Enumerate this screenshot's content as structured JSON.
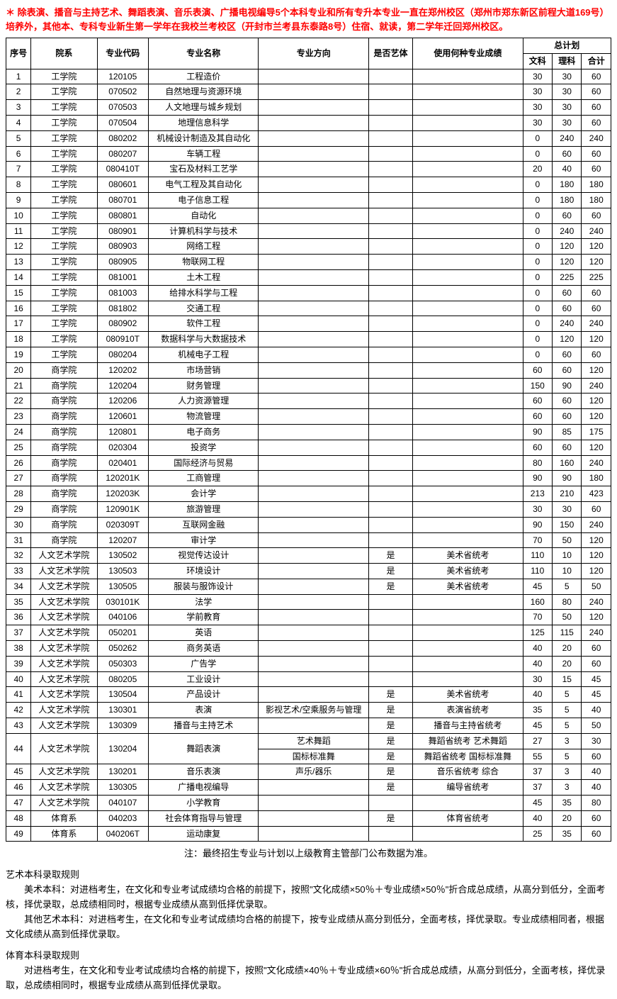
{
  "notice": "＊ 除表演、播音与主持艺术、舞蹈表演、音乐表演、广播电视编导5个本科专业和所有专升本专业一直在郑州校区（郑州市郑东新区前程大道169号）培养外，其他本、专科专业新生第一学年在我校兰考校区（开封市兰考县东泰路8号）住宿、就读，第二学年迁回郑州校区。",
  "headers": {
    "seq": "序号",
    "dept": "院系",
    "code": "专业代码",
    "name": "专业名称",
    "direction": "专业方向",
    "art": "是否艺体",
    "score": "使用何种专业成绩",
    "plan": "总计划",
    "wen": "文科",
    "li": "理科",
    "total": "合计"
  },
  "rows": [
    {
      "seq": "1",
      "dept": "工学院",
      "code": "120105",
      "name": "工程造价",
      "dir": "",
      "art": "",
      "score": "",
      "wen": "30",
      "li": "30",
      "total": "60"
    },
    {
      "seq": "2",
      "dept": "工学院",
      "code": "070502",
      "name": "自然地理与资源环境",
      "dir": "",
      "art": "",
      "score": "",
      "wen": "30",
      "li": "30",
      "total": "60"
    },
    {
      "seq": "3",
      "dept": "工学院",
      "code": "070503",
      "name": "人文地理与城乡规划",
      "dir": "",
      "art": "",
      "score": "",
      "wen": "30",
      "li": "30",
      "total": "60"
    },
    {
      "seq": "4",
      "dept": "工学院",
      "code": "070504",
      "name": "地理信息科学",
      "dir": "",
      "art": "",
      "score": "",
      "wen": "30",
      "li": "30",
      "total": "60"
    },
    {
      "seq": "5",
      "dept": "工学院",
      "code": "080202",
      "name": "机械设计制造及其自动化",
      "dir": "",
      "art": "",
      "score": "",
      "wen": "0",
      "li": "240",
      "total": "240"
    },
    {
      "seq": "6",
      "dept": "工学院",
      "code": "080207",
      "name": "车辆工程",
      "dir": "",
      "art": "",
      "score": "",
      "wen": "0",
      "li": "60",
      "total": "60"
    },
    {
      "seq": "7",
      "dept": "工学院",
      "code": "080410T",
      "name": "宝石及材料工艺学",
      "dir": "",
      "art": "",
      "score": "",
      "wen": "20",
      "li": "40",
      "total": "60"
    },
    {
      "seq": "8",
      "dept": "工学院",
      "code": "080601",
      "name": "电气工程及其自动化",
      "dir": "",
      "art": "",
      "score": "",
      "wen": "0",
      "li": "180",
      "total": "180"
    },
    {
      "seq": "9",
      "dept": "工学院",
      "code": "080701",
      "name": "电子信息工程",
      "dir": "",
      "art": "",
      "score": "",
      "wen": "0",
      "li": "180",
      "total": "180"
    },
    {
      "seq": "10",
      "dept": "工学院",
      "code": "080801",
      "name": "自动化",
      "dir": "",
      "art": "",
      "score": "",
      "wen": "0",
      "li": "60",
      "total": "60"
    },
    {
      "seq": "11",
      "dept": "工学院",
      "code": "080901",
      "name": "计算机科学与技术",
      "dir": "",
      "art": "",
      "score": "",
      "wen": "0",
      "li": "240",
      "total": "240"
    },
    {
      "seq": "12",
      "dept": "工学院",
      "code": "080903",
      "name": "网络工程",
      "dir": "",
      "art": "",
      "score": "",
      "wen": "0",
      "li": "120",
      "total": "120"
    },
    {
      "seq": "13",
      "dept": "工学院",
      "code": "080905",
      "name": "物联网工程",
      "dir": "",
      "art": "",
      "score": "",
      "wen": "0",
      "li": "120",
      "total": "120"
    },
    {
      "seq": "14",
      "dept": "工学院",
      "code": "081001",
      "name": "土木工程",
      "dir": "",
      "art": "",
      "score": "",
      "wen": "0",
      "li": "225",
      "total": "225"
    },
    {
      "seq": "15",
      "dept": "工学院",
      "code": "081003",
      "name": "给排水科学与工程",
      "dir": "",
      "art": "",
      "score": "",
      "wen": "0",
      "li": "60",
      "total": "60"
    },
    {
      "seq": "16",
      "dept": "工学院",
      "code": "081802",
      "name": "交通工程",
      "dir": "",
      "art": "",
      "score": "",
      "wen": "0",
      "li": "60",
      "total": "60"
    },
    {
      "seq": "17",
      "dept": "工学院",
      "code": "080902",
      "name": "软件工程",
      "dir": "",
      "art": "",
      "score": "",
      "wen": "0",
      "li": "240",
      "total": "240"
    },
    {
      "seq": "18",
      "dept": "工学院",
      "code": "080910T",
      "name": "数据科学与大数据技术",
      "dir": "",
      "art": "",
      "score": "",
      "wen": "0",
      "li": "120",
      "total": "120"
    },
    {
      "seq": "19",
      "dept": "工学院",
      "code": "080204",
      "name": "机械电子工程",
      "dir": "",
      "art": "",
      "score": "",
      "wen": "0",
      "li": "60",
      "total": "60"
    },
    {
      "seq": "20",
      "dept": "商学院",
      "code": "120202",
      "name": "市场营销",
      "dir": "",
      "art": "",
      "score": "",
      "wen": "60",
      "li": "60",
      "total": "120"
    },
    {
      "seq": "21",
      "dept": "商学院",
      "code": "120204",
      "name": "财务管理",
      "dir": "",
      "art": "",
      "score": "",
      "wen": "150",
      "li": "90",
      "total": "240"
    },
    {
      "seq": "22",
      "dept": "商学院",
      "code": "120206",
      "name": "人力资源管理",
      "dir": "",
      "art": "",
      "score": "",
      "wen": "60",
      "li": "60",
      "total": "120"
    },
    {
      "seq": "23",
      "dept": "商学院",
      "code": "120601",
      "name": "物流管理",
      "dir": "",
      "art": "",
      "score": "",
      "wen": "60",
      "li": "60",
      "total": "120"
    },
    {
      "seq": "24",
      "dept": "商学院",
      "code": "120801",
      "name": "电子商务",
      "dir": "",
      "art": "",
      "score": "",
      "wen": "90",
      "li": "85",
      "total": "175"
    },
    {
      "seq": "25",
      "dept": "商学院",
      "code": "020304",
      "name": "投资学",
      "dir": "",
      "art": "",
      "score": "",
      "wen": "60",
      "li": "60",
      "total": "120"
    },
    {
      "seq": "26",
      "dept": "商学院",
      "code": "020401",
      "name": "国际经济与贸易",
      "dir": "",
      "art": "",
      "score": "",
      "wen": "80",
      "li": "160",
      "total": "240"
    },
    {
      "seq": "27",
      "dept": "商学院",
      "code": "120201K",
      "name": "工商管理",
      "dir": "",
      "art": "",
      "score": "",
      "wen": "90",
      "li": "90",
      "total": "180"
    },
    {
      "seq": "28",
      "dept": "商学院",
      "code": "120203K",
      "name": "会计学",
      "dir": "",
      "art": "",
      "score": "",
      "wen": "213",
      "li": "210",
      "total": "423"
    },
    {
      "seq": "29",
      "dept": "商学院",
      "code": "120901K",
      "name": "旅游管理",
      "dir": "",
      "art": "",
      "score": "",
      "wen": "30",
      "li": "30",
      "total": "60"
    },
    {
      "seq": "30",
      "dept": "商学院",
      "code": "020309T",
      "name": "互联网金融",
      "dir": "",
      "art": "",
      "score": "",
      "wen": "90",
      "li": "150",
      "total": "240"
    },
    {
      "seq": "31",
      "dept": "商学院",
      "code": "120207",
      "name": "审计学",
      "dir": "",
      "art": "",
      "score": "",
      "wen": "70",
      "li": "50",
      "total": "120"
    },
    {
      "seq": "32",
      "dept": "人文艺术学院",
      "code": "130502",
      "name": "视觉传达设计",
      "dir": "",
      "art": "是",
      "score": "美术省统考",
      "wen": "110",
      "li": "10",
      "total": "120"
    },
    {
      "seq": "33",
      "dept": "人文艺术学院",
      "code": "130503",
      "name": "环境设计",
      "dir": "",
      "art": "是",
      "score": "美术省统考",
      "wen": "110",
      "li": "10",
      "total": "120"
    },
    {
      "seq": "34",
      "dept": "人文艺术学院",
      "code": "130505",
      "name": "服装与服饰设计",
      "dir": "",
      "art": "是",
      "score": "美术省统考",
      "wen": "45",
      "li": "5",
      "total": "50"
    },
    {
      "seq": "35",
      "dept": "人文艺术学院",
      "code": "030101K",
      "name": "法学",
      "dir": "",
      "art": "",
      "score": "",
      "wen": "160",
      "li": "80",
      "total": "240"
    },
    {
      "seq": "36",
      "dept": "人文艺术学院",
      "code": "040106",
      "name": "学前教育",
      "dir": "",
      "art": "",
      "score": "",
      "wen": "70",
      "li": "50",
      "total": "120"
    },
    {
      "seq": "37",
      "dept": "人文艺术学院",
      "code": "050201",
      "name": "英语",
      "dir": "",
      "art": "",
      "score": "",
      "wen": "125",
      "li": "115",
      "total": "240"
    },
    {
      "seq": "38",
      "dept": "人文艺术学院",
      "code": "050262",
      "name": "商务英语",
      "dir": "",
      "art": "",
      "score": "",
      "wen": "40",
      "li": "20",
      "total": "60"
    },
    {
      "seq": "39",
      "dept": "人文艺术学院",
      "code": "050303",
      "name": "广告学",
      "dir": "",
      "art": "",
      "score": "",
      "wen": "40",
      "li": "20",
      "total": "60"
    },
    {
      "seq": "40",
      "dept": "人文艺术学院",
      "code": "080205",
      "name": "工业设计",
      "dir": "",
      "art": "",
      "score": "",
      "wen": "30",
      "li": "15",
      "total": "45"
    },
    {
      "seq": "41",
      "dept": "人文艺术学院",
      "code": "130504",
      "name": "产品设计",
      "dir": "",
      "art": "是",
      "score": "美术省统考",
      "wen": "40",
      "li": "5",
      "total": "45"
    },
    {
      "seq": "42",
      "dept": "人文艺术学院",
      "code": "130301",
      "name": "表演",
      "dir": "影视艺术/空乘服务与管理",
      "art": "是",
      "score": "表演省统考",
      "wen": "35",
      "li": "5",
      "total": "40"
    },
    {
      "seq": "43",
      "dept": "人文艺术学院",
      "code": "130309",
      "name": "播音与主持艺术",
      "dir": "",
      "art": "是",
      "score": "播音与主持省统考",
      "wen": "45",
      "li": "5",
      "total": "50"
    }
  ],
  "row44": {
    "seq": "44",
    "dept": "人文艺术学院",
    "code": "130204",
    "name": "舞蹈表演",
    "sub": [
      {
        "dir": "艺术舞蹈",
        "art": "是",
        "score": "舞蹈省统考 艺术舞蹈",
        "wen": "27",
        "li": "3",
        "total": "30"
      },
      {
        "dir": "国标标准舞",
        "art": "是",
        "score": "舞蹈省统考 国标标准舞",
        "wen": "55",
        "li": "5",
        "total": "60"
      }
    ]
  },
  "rows2": [
    {
      "seq": "45",
      "dept": "人文艺术学院",
      "code": "130201",
      "name": "音乐表演",
      "dir": "声乐/器乐",
      "art": "是",
      "score": "音乐省统考 综合",
      "wen": "37",
      "li": "3",
      "total": "40"
    },
    {
      "seq": "46",
      "dept": "人文艺术学院",
      "code": "130305",
      "name": "广播电视编导",
      "dir": "",
      "art": "是",
      "score": "编导省统考",
      "wen": "37",
      "li": "3",
      "total": "40"
    },
    {
      "seq": "47",
      "dept": "人文艺术学院",
      "code": "040107",
      "name": "小学教育",
      "dir": "",
      "art": "",
      "score": "",
      "wen": "45",
      "li": "35",
      "total": "80"
    },
    {
      "seq": "48",
      "dept": "体育系",
      "code": "040203",
      "name": "社会体育指导与管理",
      "dir": "",
      "art": "是",
      "score": "体育省统考",
      "wen": "40",
      "li": "20",
      "total": "60"
    },
    {
      "seq": "49",
      "dept": "体育系",
      "code": "040206T",
      "name": "运动康复",
      "dir": "",
      "art": "",
      "score": "",
      "wen": "25",
      "li": "35",
      "total": "60"
    }
  ],
  "footnote": "注：最终招生专业与计划以上级教育主管部门公布数据为准。",
  "rules": {
    "art_heading": "艺术本科录取规则",
    "art_p1": "美术本科：对进档考生，在文化和专业考试成绩均合格的前提下，按照\"文化成绩×50％＋专业成绩×50％\"折合成总成绩，从高分到低分，全面考核，择优录取，总成绩相同时，根据专业成绩从高到低择优录取。",
    "art_p2": "其他艺术本科：对进档考生，在文化和专业考试成绩均合格的前提下，按专业成绩从高分到低分，全面考核，择优录取。专业成绩相同者，根据文化成绩从高到低择优录取。",
    "pe_heading": "体育本科录取规则",
    "pe_p1": "对进档考生，在文化和专业考试成绩均合格的前提下，按照\"文化成绩×40％＋专业成绩×60％\"折合成总成绩，从高分到低分，全面考核，择优录取，总成绩相同时，根据专业成绩从高到低择优录取。"
  }
}
